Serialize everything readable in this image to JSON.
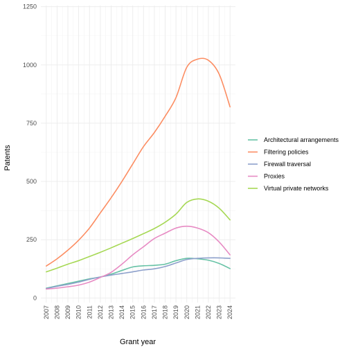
{
  "chart_data": {
    "type": "line",
    "title": "",
    "xlabel": "Grant year",
    "ylabel": "Patents",
    "x": [
      2007,
      2008,
      2009,
      2010,
      2011,
      2012,
      2013,
      2014,
      2015,
      2016,
      2017,
      2018,
      2019,
      2020,
      2021,
      2022,
      2023,
      2024
    ],
    "xticks": [
      "2007",
      "2008",
      "2009",
      "2010",
      "2011",
      "2012",
      "2013",
      "2014",
      "2015",
      "2016",
      "2017",
      "2018",
      "2019",
      "2020",
      "2021",
      "2022",
      "2023",
      "2024"
    ],
    "yticks": [
      "0",
      "250",
      "500",
      "750",
      "1000",
      "1250"
    ],
    "ylim": [
      -20,
      1255
    ],
    "xlim": [
      2006.5,
      2024.5
    ],
    "grid": true,
    "legend_position": "right",
    "series": [
      {
        "name": "Architectural arrangements",
        "color": "#66C2A5",
        "values": [
          42,
          52,
          62,
          72,
          82,
          90,
          102,
          118,
          133,
          138,
          140,
          145,
          160,
          170,
          168,
          162,
          148,
          126
        ]
      },
      {
        "name": "Filtering policies",
        "color": "#FC8D62",
        "values": [
          137,
          168,
          205,
          248,
          300,
          365,
          430,
          500,
          575,
          650,
          710,
          780,
          860,
          990,
          1025,
          1020,
          960,
          820
        ]
      },
      {
        "name": "Firewall traversal",
        "color": "#8DA0CB",
        "values": [
          40,
          50,
          58,
          68,
          80,
          90,
          98,
          105,
          112,
          120,
          125,
          135,
          150,
          165,
          170,
          172,
          172,
          170
        ]
      },
      {
        "name": "Proxies",
        "color": "#E78AC3",
        "values": [
          38,
          42,
          48,
          55,
          68,
          88,
          110,
          145,
          185,
          220,
          255,
          278,
          300,
          308,
          300,
          280,
          240,
          185
        ]
      },
      {
        "name": "Virtual private networks",
        "color": "#A6D854",
        "values": [
          112,
          128,
          145,
          160,
          178,
          196,
          215,
          235,
          255,
          276,
          298,
          325,
          360,
          410,
          425,
          415,
          385,
          335
        ]
      }
    ]
  }
}
